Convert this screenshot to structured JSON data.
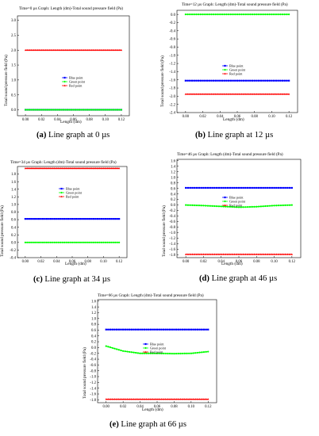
{
  "figure": {
    "panels": [
      {
        "title": "Time=0 µs Graph: Length (dm)-Total sound pressure field (Pa)",
        "caption_letter": "(a)",
        "caption_text": " Line graph at 0 µs"
      },
      {
        "title": "Time=12 µs Graph: Length (dm)-Total sound pressure field (Pa)",
        "caption_letter": "(b)",
        "caption_text": " Line graph at 12 µs"
      },
      {
        "title": "Time=34 µs Graph: Length (dm)-Total sound pressure field (Pa)",
        "caption_letter": "(c)",
        "caption_text": " Line graph at 34 µs"
      },
      {
        "title": "Time=46 µs Graph: Length (dm)-Total sound pressure field (Pa)",
        "caption_letter": "(d)",
        "caption_text": " Line graph at 46 µs"
      },
      {
        "title": "Time=66 µs Graph: Length (dm)-Total sound pressure field (Pa)",
        "caption_letter": "(e)",
        "caption_text": " Line graph at 66 µs"
      }
    ]
  },
  "chart_data": [
    {
      "type": "line",
      "title": "Time=0 µs Graph: Length (dm)-Total sound pressure field (Pa)",
      "xlabel": "Length (dm)",
      "ylabel": "Total sound pressure field (Pa)",
      "xlim": [
        -0.01,
        0.13
      ],
      "ylim": [
        -0.2,
        3.15
      ],
      "xticks": [
        0.0,
        0.02,
        0.04,
        0.06,
        0.08,
        0.1,
        0.12
      ],
      "yticks": [
        0.0,
        0.5,
        1.0,
        1.5,
        2.0,
        2.5,
        3.0
      ],
      "tick_decimals": 1,
      "legend": "upper-middle",
      "series": [
        {
          "name": "Blue point",
          "color": "#0000ff",
          "marker": "square",
          "x": [
            0.0,
            0.12
          ],
          "y": [
            0.0,
            0.0
          ]
        },
        {
          "name": "Green point",
          "color": "#00ff00",
          "marker": "circle",
          "x": [
            0.0,
            0.12
          ],
          "y": [
            0.0,
            0.0
          ]
        },
        {
          "name": "Red point",
          "color": "#ff0000",
          "marker": "triangle",
          "x": [
            0.0,
            0.12
          ],
          "y": [
            2.0,
            2.0
          ]
        }
      ]
    },
    {
      "type": "line",
      "title": "Time=12 µs Graph: Length (dm)-Total sound pressure field (Pa)",
      "xlabel": "Length (dm)",
      "ylabel": "Total sound pressure field (Pa)",
      "xlim": [
        -0.01,
        0.13
      ],
      "ylim": [
        -2.4,
        0.1
      ],
      "xticks": [
        0.0,
        0.02,
        0.04,
        0.06,
        0.08,
        0.1,
        0.12
      ],
      "yticks": [
        0.0,
        -0.2,
        -0.4,
        -0.6,
        -0.8,
        -1.0,
        -1.2,
        -1.4,
        -1.6,
        -1.8,
        -2.0,
        -2.2,
        -2.4
      ],
      "tick_decimals": 1,
      "legend": "lower-middle",
      "series": [
        {
          "name": "Blue point",
          "color": "#0000ff",
          "marker": "square",
          "x": [
            0.0,
            0.12
          ],
          "y": [
            -1.62,
            -1.62
          ]
        },
        {
          "name": "Green point",
          "color": "#00ff00",
          "marker": "circle",
          "x": [
            0.0,
            0.12
          ],
          "y": [
            0.0,
            0.0
          ]
        },
        {
          "name": "Red point",
          "color": "#ff0000",
          "marker": "triangle",
          "x": [
            0.0,
            0.12
          ],
          "y": [
            -1.95,
            -1.95
          ]
        }
      ]
    },
    {
      "type": "line",
      "title": "Time=34 µs Graph: Length (dm)-Total sound pressure field (Pa)",
      "xlabel": "Length (dm)",
      "ylabel": "Total sound pressure field (Pa)",
      "xlim": [
        -0.01,
        0.13
      ],
      "ylim": [
        -0.4,
        2.0
      ],
      "xticks": [
        0.0,
        0.02,
        0.04,
        0.06,
        0.08,
        0.1,
        0.12
      ],
      "yticks": [
        -0.4,
        -0.2,
        0.0,
        0.2,
        0.4,
        0.6,
        0.8,
        1.0,
        1.2,
        1.4,
        1.6,
        1.8
      ],
      "tick_decimals": 1,
      "legend": "middle",
      "series": [
        {
          "name": "Blue point",
          "color": "#0000ff",
          "marker": "square",
          "x": [
            0.0,
            0.12
          ],
          "y": [
            0.62,
            0.62
          ]
        },
        {
          "name": "Green point",
          "color": "#00ff00",
          "marker": "circle",
          "x": [
            0.0,
            0.12
          ],
          "y": [
            0.0,
            0.0
          ]
        },
        {
          "name": "Red point",
          "color": "#ff0000",
          "marker": "triangle",
          "x": [
            0.0,
            0.12
          ],
          "y": [
            1.95,
            1.95
          ]
        }
      ]
    },
    {
      "type": "line",
      "title": "Time=46 µs Graph: Length (dm)-Total sound pressure field (Pa)",
      "xlabel": "Length (dm)",
      "ylabel": "Total sound pressure field (Pa)",
      "xlim": [
        -0.01,
        0.13
      ],
      "ylim": [
        -1.9,
        1.65
      ],
      "xticks": [
        0.0,
        0.02,
        0.04,
        0.06,
        0.08,
        0.1,
        0.12
      ],
      "yticks": [
        1.6,
        1.4,
        1.2,
        1.0,
        0.8,
        0.6,
        0.4,
        0.2,
        0.0,
        -0.2,
        -0.4,
        -0.6,
        -0.8,
        -1.0,
        -1.2,
        -1.4,
        -1.6,
        -1.8
      ],
      "tick_decimals": 1,
      "legend": "lower-middle",
      "series": [
        {
          "name": "Blue point",
          "color": "#0000ff",
          "marker": "square",
          "x": [
            0.0,
            0.12
          ],
          "y": [
            0.62,
            0.62
          ]
        },
        {
          "name": "Green point",
          "color": "#00ff00",
          "marker": "circle",
          "x": [
            0.0,
            0.02,
            0.04,
            0.06,
            0.08,
            0.1,
            0.12
          ],
          "y": [
            0.0,
            -0.02,
            -0.05,
            -0.08,
            -0.06,
            -0.02,
            0.0
          ]
        },
        {
          "name": "Red point",
          "color": "#ff0000",
          "marker": "triangle",
          "x": [
            0.0,
            0.12
          ],
          "y": [
            -1.78,
            -1.78
          ]
        }
      ]
    },
    {
      "type": "line",
      "title": "Time=66 µs Graph: Length (dm)-Total sound pressure field (Pa)",
      "xlabel": "Length (dm)",
      "ylabel": "Total sound pressure field (Pa)",
      "xlim": [
        -0.01,
        0.13
      ],
      "ylim": [
        -1.9,
        1.65
      ],
      "xticks": [
        0.0,
        0.02,
        0.04,
        0.06,
        0.08,
        0.1,
        0.12
      ],
      "yticks": [
        1.6,
        1.4,
        1.2,
        1.0,
        0.8,
        0.6,
        0.4,
        0.2,
        0.0,
        -0.2,
        -0.4,
        -0.6,
        -0.8,
        -1.0,
        -1.2,
        -1.4,
        -1.6,
        -1.8
      ],
      "tick_decimals": 1,
      "legend": "lower-middle",
      "series": [
        {
          "name": "Blue point",
          "color": "#0000ff",
          "marker": "square",
          "x": [
            0.0,
            0.12
          ],
          "y": [
            0.62,
            0.62
          ]
        },
        {
          "name": "Green point",
          "color": "#00ff00",
          "marker": "circle",
          "x": [
            0.0,
            0.02,
            0.04,
            0.06,
            0.08,
            0.1,
            0.12
          ],
          "y": [
            0.05,
            -0.12,
            -0.2,
            -0.2,
            -0.21,
            -0.2,
            -0.14
          ]
        },
        {
          "name": "Red point",
          "color": "#ff0000",
          "marker": "triangle",
          "x": [
            0.0,
            0.12
          ],
          "y": [
            -1.78,
            -1.78
          ]
        }
      ]
    }
  ]
}
